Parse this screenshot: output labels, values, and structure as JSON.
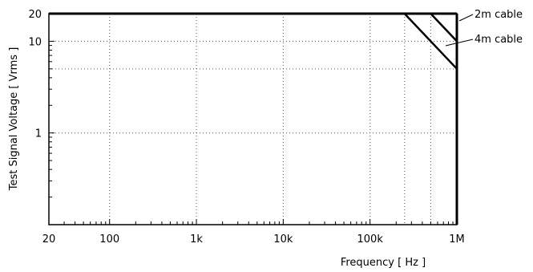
{
  "chart_data": {
    "type": "line",
    "xlabel": "Frequency [ Hz ]",
    "ylabel": "Test Signal Voltage [ Vrms ]",
    "xscale": "log",
    "yscale": "log",
    "xlim": [
      20,
      1000000
    ],
    "ylim": [
      0.1,
      20
    ],
    "x_ticks": [
      {
        "value": 20,
        "label": "20"
      },
      {
        "value": 100,
        "label": "100"
      },
      {
        "value": 1000,
        "label": "1k"
      },
      {
        "value": 10000,
        "label": "10k"
      },
      {
        "value": 100000,
        "label": "100k"
      },
      {
        "value": 1000000,
        "label": "1M"
      }
    ],
    "y_ticks": [
      {
        "value": 1,
        "label": "1"
      },
      {
        "value": 10,
        "label": "10"
      },
      {
        "value": 20,
        "label": "20"
      }
    ],
    "grid": true,
    "series": [
      {
        "name": "2m cable",
        "x": [
          20,
          500000,
          1000000
        ],
        "y": [
          20,
          20,
          10
        ]
      },
      {
        "name": "4m cable",
        "x": [
          20,
          250000,
          1000000
        ],
        "y": [
          20,
          20,
          5
        ]
      }
    ],
    "upper_bound": {
      "x": [
        20,
        1000000
      ],
      "y": [
        20,
        20
      ]
    },
    "vertical_limit": {
      "x": 1000000,
      "y": [
        0.1,
        20
      ]
    }
  }
}
